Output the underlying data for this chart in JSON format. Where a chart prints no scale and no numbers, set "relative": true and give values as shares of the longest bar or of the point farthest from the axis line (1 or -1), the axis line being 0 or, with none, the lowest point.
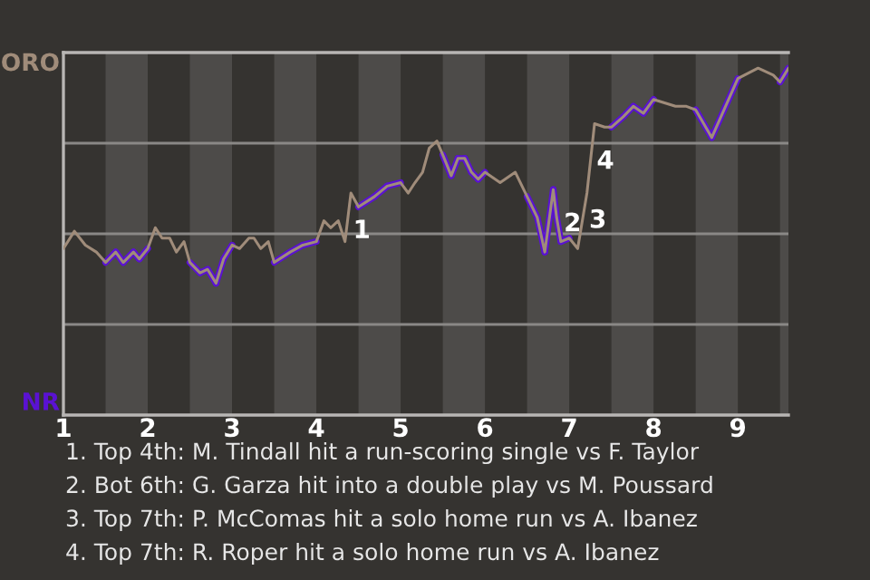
{
  "chart_data": {
    "type": "line",
    "x": [
      1.0,
      1.13,
      1.26,
      1.39,
      1.5,
      1.62,
      1.71,
      1.83,
      1.9,
      2.0,
      2.09,
      2.17,
      2.26,
      2.34,
      2.43,
      2.5,
      2.62,
      2.71,
      2.81,
      2.9,
      3.0,
      3.09,
      3.2,
      3.26,
      3.34,
      3.43,
      3.5,
      3.69,
      3.84,
      4.0,
      4.09,
      4.17,
      4.26,
      4.34,
      4.41,
      4.5,
      4.69,
      4.84,
      5.0,
      5.09,
      5.17,
      5.26,
      5.34,
      5.43,
      5.5,
      5.6,
      5.68,
      5.76,
      5.84,
      5.92,
      6.0,
      6.18,
      6.36,
      6.5,
      6.62,
      6.71,
      6.81,
      6.85,
      6.9,
      7.0,
      7.1,
      7.21,
      7.3,
      7.42,
      7.5,
      7.64,
      7.76,
      7.88,
      8.0,
      8.13,
      8.26,
      8.39,
      8.5,
      8.69,
      9.0,
      9.24,
      9.42,
      9.5,
      9.6
    ],
    "series": [
      {
        "color": "#a08c7a",
        "values": [
          0.48,
          0.53,
          0.49,
          0.47,
          0.44,
          0.47,
          0.44,
          0.47,
          0.45,
          0.48,
          0.54,
          0.51,
          0.51,
          0.47,
          0.5,
          0.44,
          0.41,
          0.42,
          0.38,
          0.45,
          0.49,
          0.48,
          0.51,
          0.51,
          0.48,
          0.5,
          0.44,
          0.47,
          0.49,
          0.5,
          0.56,
          0.54,
          0.56,
          0.5,
          0.64,
          0.6,
          0.63,
          0.66,
          0.67,
          0.64,
          0.67,
          0.7,
          0.77,
          0.79,
          0.75,
          0.69,
          0.74,
          0.74,
          0.7,
          0.68,
          0.7,
          0.67,
          0.7,
          0.63,
          0.57,
          0.47,
          0.65,
          0.57,
          0.5,
          0.51,
          0.48,
          0.64,
          0.84,
          0.83,
          0.83,
          0.86,
          0.89,
          0.87,
          0.91,
          0.9,
          0.89,
          0.89,
          0.88,
          0.8,
          0.97,
          1.0,
          0.98,
          0.96,
          1.0
        ],
        "colors": [
          "#a08c7a",
          "#a08c7a",
          "#a08c7a",
          "#a08c7a",
          "#5a12d2",
          "#5a12d2",
          "#5a12d2",
          "#5a12d2",
          "#5a12d2",
          "#a08c7a",
          "#a08c7a",
          "#a08c7a",
          "#a08c7a",
          "#a08c7a",
          "#a08c7a",
          "#5a12d2",
          "#5a12d2",
          "#5a12d2",
          "#5a12d2",
          "#5a12d2",
          "#a08c7a",
          "#a08c7a",
          "#a08c7a",
          "#a08c7a",
          "#a08c7a",
          "#a08c7a",
          "#5a12d2",
          "#5a12d2",
          "#5a12d2",
          "#a08c7a",
          "#a08c7a",
          "#a08c7a",
          "#a08c7a",
          "#a08c7a",
          "#a08c7a",
          "#5a12d2",
          "#5a12d2",
          "#5a12d2",
          "#a08c7a",
          "#a08c7a",
          "#a08c7a",
          "#a08c7a",
          "#a08c7a",
          "#a08c7a",
          "#5a12d2",
          "#5a12d2",
          "#5a12d2",
          "#5a12d2",
          "#5a12d2",
          "#5a12d2",
          "#a08c7a",
          "#a08c7a",
          "#a08c7a",
          "#5a12d2",
          "#5a12d2",
          "#5a12d2",
          "#5a12d2",
          "#5a12d2",
          "#5a12d2",
          "#a08c7a",
          "#a08c7a",
          "#a08c7a",
          "#a08c7a",
          "#a08c7a",
          "#5a12d2",
          "#5a12d2",
          "#5a12d2",
          "#5a12d2",
          "#a08c7a",
          "#a08c7a",
          "#a08c7a",
          "#a08c7a",
          "#5a12d2",
          "#5a12d2",
          "#a08c7a",
          "#a08c7a",
          "#a08c7a",
          "#5a12d2",
          "#5a12d2"
        ]
      }
    ],
    "relative": true,
    "xlim": [
      1,
      9.6
    ],
    "xticks": [
      1,
      2,
      3,
      4,
      5,
      6,
      7,
      8,
      9
    ],
    "bands": [
      {
        "axis": "x",
        "from": 1.5,
        "to": 2,
        "color": "#4d4b49"
      },
      {
        "axis": "x",
        "from": 2.5,
        "to": 3,
        "color": "#4d4b49"
      },
      {
        "axis": "x",
        "from": 3.5,
        "to": 4,
        "color": "#4d4b49"
      },
      {
        "axis": "x",
        "from": 4.5,
        "to": 5,
        "color": "#4d4b49"
      },
      {
        "axis": "x",
        "from": 5.5,
        "to": 6,
        "color": "#4d4b49"
      },
      {
        "axis": "x",
        "from": 6.5,
        "to": 7,
        "color": "#4d4b49"
      },
      {
        "axis": "x",
        "from": 7.5,
        "to": 8,
        "color": "#4d4b49"
      },
      {
        "axis": "x",
        "from": 8.5,
        "to": 9,
        "color": "#4d4b49"
      },
      {
        "axis": "x",
        "from": 9.5,
        "to": 9.6,
        "color": "#4d4b49"
      }
    ],
    "grid": "y",
    "annotations": [
      "ORO",
      "NR",
      {
        "text": "1",
        "x": 4.36,
        "y": 0.53
      },
      {
        "text": "2",
        "x": 6.86,
        "y": 0.55
      },
      {
        "text": "3",
        "x": 7.16,
        "y": 0.56
      },
      {
        "text": "4",
        "x": 7.25,
        "y": 0.73
      },
      "1. Top 4th: M. Tindall hit a run-scoring single vs F. Taylor",
      "2. Bot 6th: G. Garza hit into a double play vs M. Poussard",
      "3. Top 7th: P. McComas hit a solo home run vs A. Ibanez",
      "4. Top 7th: R. Roper hit a solo home run vs A. Ibanez"
    ]
  }
}
